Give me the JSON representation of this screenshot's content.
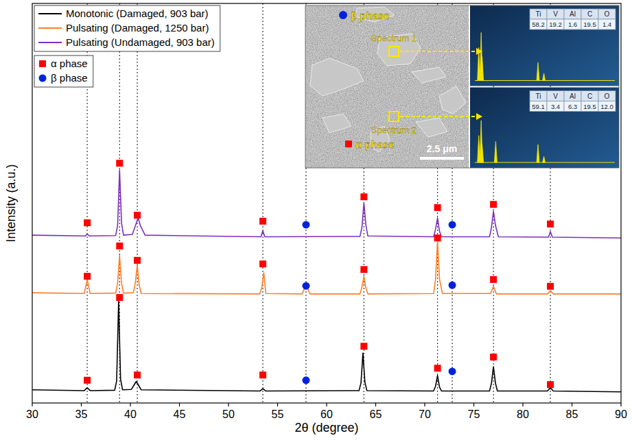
{
  "chart_data": {
    "type": "line",
    "x_label": "2θ (degree)",
    "y_label": "Intensity (a.u.)",
    "xlim": [
      30,
      90
    ],
    "ylim": [
      0,
      100
    ],
    "xticks": [
      30,
      35,
      40,
      45,
      50,
      55,
      60,
      65,
      70,
      75,
      80,
      85,
      90
    ],
    "tick_labels": "x",
    "grid": false,
    "legend": "upper left",
    "reference_x": [
      35.6,
      38.9,
      40.7,
      53.5,
      57.9,
      63.8,
      71.3,
      72.8,
      77.0,
      82.8
    ],
    "series": [
      {
        "name": "Monotonic (Damaged, 903 bar)",
        "type": "line",
        "color": "#000000",
        "x": [
          30,
          35.3,
          35.6,
          35.9,
          38.4,
          38.6,
          38.8,
          39.0,
          39.2,
          40.1,
          40.6,
          41.1,
          53.2,
          53.5,
          53.8,
          63.3,
          63.5,
          63.7,
          63.9,
          64.1,
          70.9,
          71.1,
          71.3,
          71.5,
          71.7,
          76.6,
          76.8,
          77.0,
          77.2,
          77.4,
          82.5,
          82.8,
          83.1,
          90
        ],
        "values": [
          3.3,
          3.1,
          3.8,
          3.1,
          3.2,
          5.5,
          25.4,
          6.0,
          3.3,
          3.4,
          5.4,
          3.3,
          3.0,
          3.6,
          3.0,
          3.1,
          5.0,
          12.5,
          5.2,
          3.1,
          3.0,
          4.2,
          6.9,
          4.0,
          3.0,
          3.0,
          5.0,
          9.1,
          5.0,
          3.0,
          3.0,
          3.8,
          3.0,
          2.8
        ]
      },
      {
        "name": "Pulsating (Damaged, 1250 bar)",
        "type": "line",
        "color": "#ff7f27",
        "x": [
          30,
          35.3,
          35.6,
          35.9,
          38.5,
          38.7,
          38.9,
          39.1,
          39.3,
          40.3,
          40.5,
          40.7,
          40.9,
          41.1,
          53.2,
          53.4,
          53.6,
          53.8,
          57.5,
          57.9,
          58.3,
          63.4,
          63.6,
          63.8,
          64.0,
          64.2,
          70.9,
          71.1,
          71.3,
          71.5,
          71.8,
          76.7,
          77.0,
          77.3,
          82.5,
          82.8,
          83.1,
          90
        ],
        "values": [
          27.6,
          27.4,
          30.9,
          27.4,
          27.5,
          30.0,
          36.9,
          30.0,
          27.5,
          27.6,
          30.0,
          34.5,
          29.5,
          27.4,
          27.3,
          29.0,
          32.6,
          27.4,
          27.3,
          29.6,
          27.3,
          27.3,
          29.0,
          31.7,
          28.8,
          27.3,
          27.4,
          31.0,
          40.5,
          31.0,
          27.4,
          27.4,
          29.2,
          27.3,
          27.3,
          28.1,
          27.3,
          27.3
        ]
      },
      {
        "name": "Pulsating (Undamaged, 903 bar)",
        "type": "line",
        "color": "#7b2fbf",
        "x": [
          30,
          35.4,
          35.6,
          35.8,
          38.5,
          38.7,
          38.9,
          39.1,
          39.3,
          40.2,
          40.6,
          40.8,
          41.0,
          41.5,
          53.3,
          53.5,
          53.7,
          63.4,
          63.6,
          63.8,
          64.0,
          64.2,
          70.9,
          71.1,
          71.3,
          71.5,
          71.7,
          76.6,
          76.8,
          77.0,
          77.2,
          77.5,
          82.6,
          82.8,
          83.0,
          90
        ],
        "values": [
          42.0,
          41.8,
          42.3,
          41.8,
          41.9,
          44.5,
          58.3,
          45.0,
          42.0,
          42.2,
          45.0,
          46.3,
          44.5,
          42.0,
          41.6,
          43.1,
          41.6,
          41.7,
          44.0,
          50.1,
          44.5,
          41.8,
          41.6,
          43.5,
          46.3,
          43.0,
          41.6,
          41.6,
          44.0,
          48.0,
          44.5,
          41.6,
          41.5,
          42.9,
          41.5,
          41.3
        ]
      },
      {
        "name": "α phase",
        "type": "scatter",
        "marker": "square",
        "color": "#ff0000",
        "x": [
          35.6,
          38.9,
          40.7,
          53.5,
          63.8,
          71.3,
          77.0,
          82.8,
          35.6,
          38.9,
          40.7,
          53.5,
          63.8,
          71.3,
          77.0,
          82.8,
          35.6,
          38.9,
          40.7,
          53.5,
          63.8,
          71.3,
          77.0,
          82.8
        ],
        "values": [
          45.1,
          60.0,
          47.0,
          45.5,
          51.6,
          48.9,
          49.7,
          44.8,
          31.7,
          39.3,
          35.7,
          34.8,
          33.4,
          41.3,
          30.9,
          29.2,
          5.7,
          26.4,
          7.0,
          7.0,
          14.2,
          8.7,
          11.5,
          4.6
        ]
      },
      {
        "name": "β phase",
        "type": "scatter",
        "marker": "circle",
        "color": "#0022dd",
        "x": [
          57.9,
          72.8,
          57.9,
          72.8,
          57.9,
          72.8
        ],
        "values": [
          44.6,
          44.6,
          29.3,
          29.5,
          5.7,
          7.9
        ]
      }
    ],
    "inset": {
      "beta_label": "β phase",
      "alpha_label": "α phase",
      "scale_bar": "2.5 μm",
      "spectrum_xlim": [
        0,
        10
      ],
      "spectrum_ylim": [
        0,
        100
      ],
      "spectra": [
        {
          "name": "Spectrum 1",
          "elements": [
            "Ti",
            "V",
            "Al",
            "C",
            "O"
          ],
          "values": [
            58.2,
            19.2,
            1.6,
            19.5,
            1.4
          ],
          "value_labels": [
            "58.2",
            "19.2",
            "1.6",
            "19.5",
            "1.4"
          ],
          "peaks_x": [
            0.28,
            0.45,
            0.52,
            4.51,
            4.93
          ],
          "peaks_height": [
            55,
            80,
            40,
            30,
            12
          ]
        },
        {
          "name": "Spectrum 2",
          "elements": [
            "Ti",
            "V",
            "Al",
            "C",
            "O"
          ],
          "values": [
            59.1,
            3.4,
            6.3,
            19.5,
            12.0
          ],
          "value_labels": [
            "59.1",
            "3.4",
            "6.3",
            "19.5",
            "12.0"
          ],
          "peaks_x": [
            0.28,
            0.45,
            0.52,
            1.49,
            4.51,
            4.93
          ],
          "peaks_height": [
            45,
            70,
            30,
            35,
            30,
            10
          ]
        }
      ]
    }
  }
}
